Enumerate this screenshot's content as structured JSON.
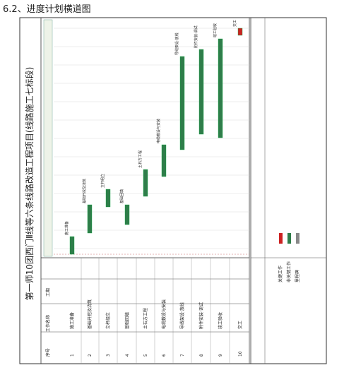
{
  "header": {
    "title": "6.2、进度计划横道图"
  },
  "schedule": {
    "title": "第一师10团西门Ⅱ线等六条线路改造工程项目(线路施工七标段)",
    "columns": [
      "序号",
      "工作名称",
      "工期"
    ],
    "tasks": [
      {
        "no": "1",
        "name": "施工准备"
      },
      {
        "no": "2",
        "name": "基础开挖及浇筑"
      },
      {
        "no": "3",
        "name": "立杆组立"
      },
      {
        "no": "4",
        "name": "基础回填"
      },
      {
        "no": "5",
        "name": "土石方工程"
      },
      {
        "no": "6",
        "name": "电缆敷设与安装"
      },
      {
        "no": "7",
        "name": "导线架设·放线"
      },
      {
        "no": "8",
        "name": "附件安装·调试"
      },
      {
        "no": "9",
        "name": "竣工验收"
      },
      {
        "no": "10",
        "name": "交工"
      }
    ],
    "legend": [
      "关键工作",
      "非关键工作",
      "里程碑"
    ]
  }
}
